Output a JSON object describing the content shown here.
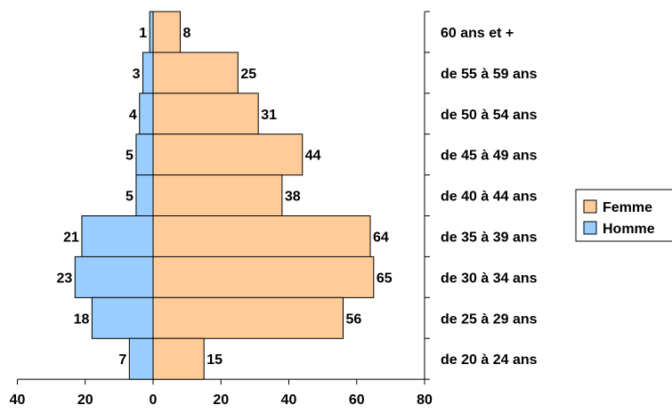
{
  "chart_data": {
    "type": "bar",
    "orientation": "horizontal",
    "categories": [
      "60 ans et +",
      "de 55 à 59 ans",
      "de 50 à 54 ans",
      "de 45 à 49 ans",
      "de 40 à 44 ans",
      "de 35 à 39 ans",
      "de 30 à 34 ans",
      "de 25 à 29 ans",
      "de 20 à 24 ans"
    ],
    "series": [
      {
        "name": "Femme",
        "values": [
          8,
          25,
          31,
          44,
          38,
          64,
          65,
          56,
          15
        ],
        "color": "#FFCC99"
      },
      {
        "name": "Homme",
        "values": [
          1,
          3,
          4,
          5,
          5,
          21,
          23,
          18,
          7
        ],
        "color": "#99CCFF"
      }
    ],
    "xlim": [
      -40,
      80
    ],
    "xticks": [
      -40,
      -20,
      0,
      20,
      40,
      60,
      80
    ],
    "xtick_labels": [
      "40",
      "20",
      "0",
      "20",
      "40",
      "60",
      "80"
    ],
    "legend_position": "right",
    "grid": false,
    "title": "",
    "xlabel": "",
    "ylabel": ""
  }
}
